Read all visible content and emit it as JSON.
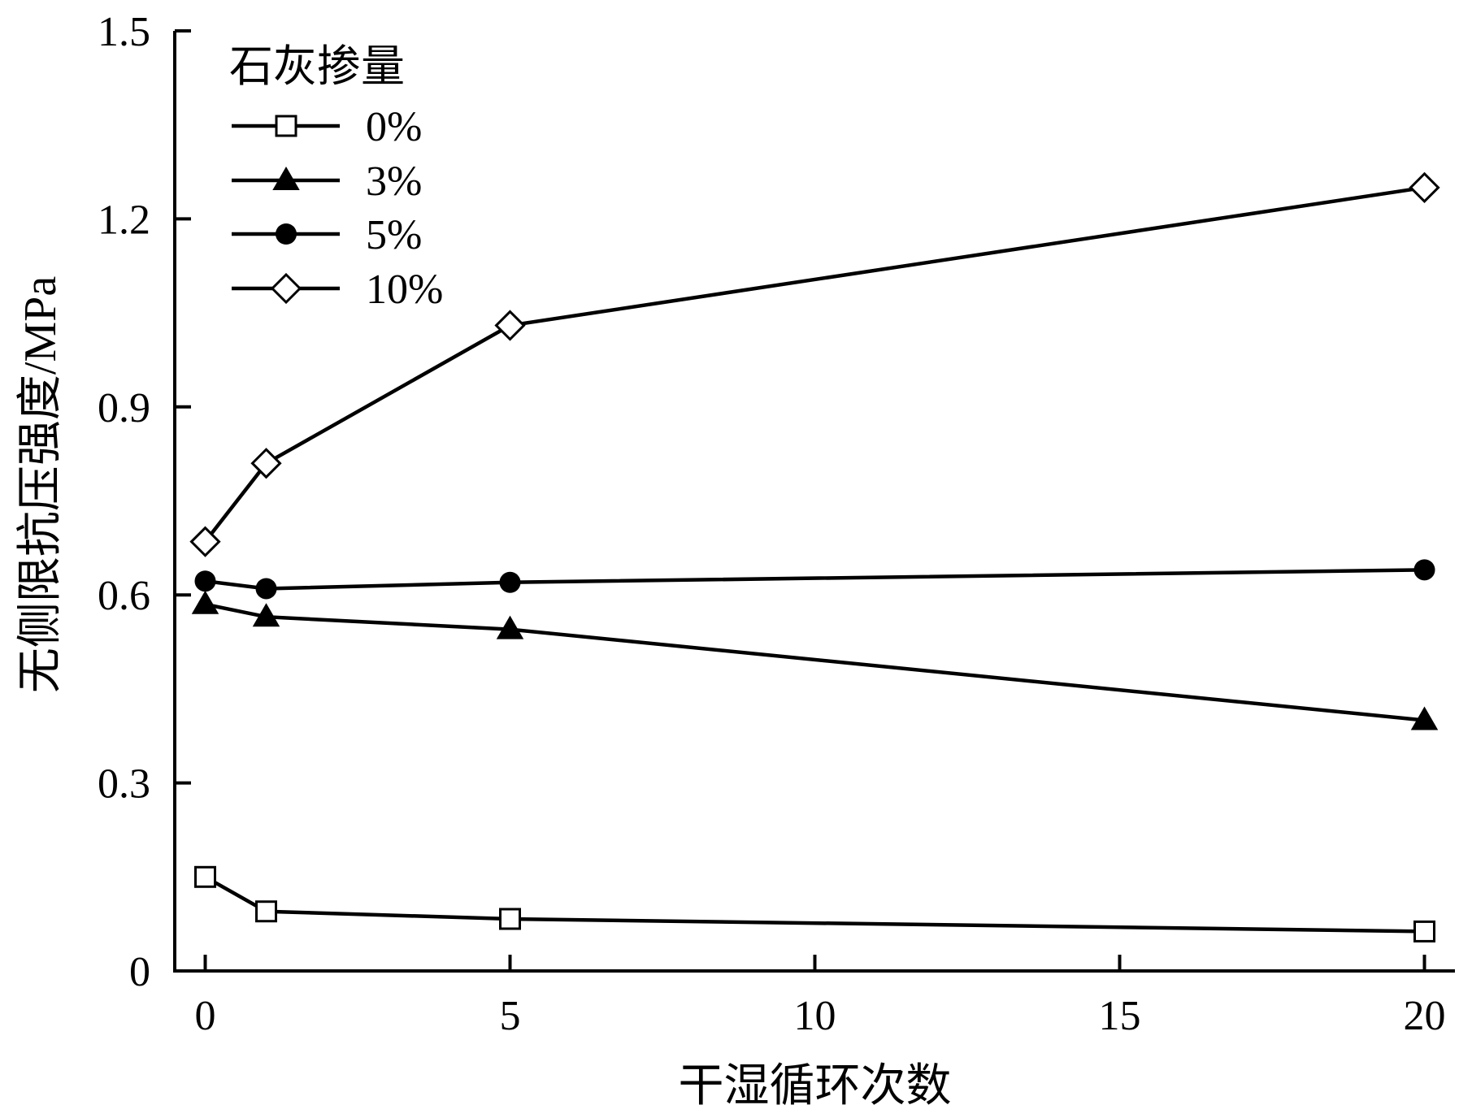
{
  "chart_data": {
    "type": "line",
    "title": "",
    "xlabel": "干湿循环次数",
    "ylabel": "无侧限抗压强度/MPa",
    "xlim": [
      -0.5,
      20.5
    ],
    "ylim": [
      0,
      1.5
    ],
    "xticks": [
      0,
      5,
      10,
      15,
      20
    ],
    "xtick_labels": [
      "0",
      "5",
      "10",
      "15",
      "20"
    ],
    "yticks": [
      0,
      0.3,
      0.6,
      0.9,
      1.2,
      1.5
    ],
    "ytick_labels": [
      "0",
      "0.3",
      "0.6",
      "0.9",
      "1.2",
      "1.5"
    ],
    "grid": false,
    "legend": {
      "title": "石灰掺量",
      "placement": "top-left"
    },
    "x": [
      0,
      1,
      5,
      20
    ],
    "series": [
      {
        "name": "0%",
        "marker": "square-open",
        "values": [
          0.15,
          0.095,
          0.083,
          0.063
        ]
      },
      {
        "name": "3%",
        "marker": "triangle-filled",
        "values": [
          0.585,
          0.565,
          0.545,
          0.4
        ]
      },
      {
        "name": "5%",
        "marker": "circle-filled",
        "values": [
          0.622,
          0.61,
          0.62,
          0.64
        ]
      },
      {
        "name": "10%",
        "marker": "diamond-open",
        "values": [
          0.685,
          0.81,
          1.03,
          1.25
        ]
      }
    ],
    "colors": {
      "line": "#000000",
      "background": "#ffffff"
    }
  }
}
